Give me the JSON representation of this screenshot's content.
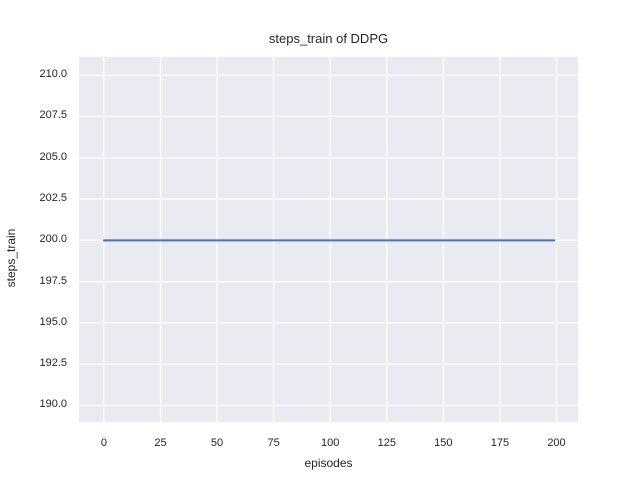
{
  "figure": {
    "title": "steps_train of DDPG",
    "xlabel": "episodes",
    "ylabel": "steps_train"
  },
  "chart_data": {
    "type": "line",
    "title": "steps_train of DDPG",
    "xlabel": "episodes",
    "ylabel": "steps_train",
    "xlim": [
      -11,
      209.5
    ],
    "ylim": [
      189.0,
      211.1
    ],
    "x_ticks": [
      0,
      25,
      50,
      75,
      100,
      125,
      150,
      175,
      200
    ],
    "x_tick_labels": [
      "0",
      "25",
      "50",
      "75",
      "100",
      "125",
      "150",
      "175",
      "200"
    ],
    "y_ticks": [
      190.0,
      192.5,
      195.0,
      197.5,
      200.0,
      202.5,
      205.0,
      207.5,
      210.0
    ],
    "y_tick_labels": [
      "190.0",
      "192.5",
      "195.0",
      "197.5",
      "200.0",
      "202.5",
      "205.0",
      "207.5",
      "210.0"
    ],
    "grid": true,
    "legend": false,
    "series": [
      {
        "name": "steps_train",
        "x": [
          0,
          199
        ],
        "y": [
          200,
          200
        ],
        "constant_value": 200,
        "color": "#4c72b0",
        "line_width": 2
      }
    ],
    "colors": {
      "figure_background": "#ffffff",
      "axes_background": "#eaeaf2",
      "grid": "#ffffff",
      "text": "#262626"
    }
  }
}
